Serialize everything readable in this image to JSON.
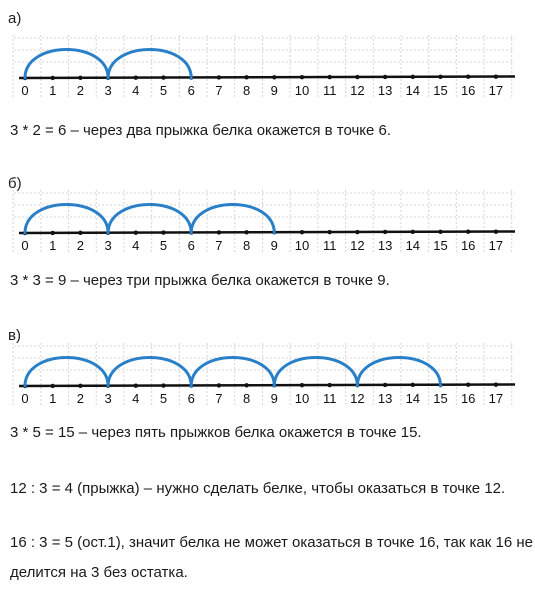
{
  "parts": [
    {
      "label": "а)",
      "jumps": [
        [
          0,
          3
        ],
        [
          3,
          6
        ]
      ],
      "ticks": [
        "0",
        "1",
        "2",
        "3",
        "4",
        "5",
        "6",
        "7",
        "8",
        "9",
        "10",
        "11",
        "12",
        "13",
        "14",
        "15",
        "16",
        "17"
      ],
      "text": "3 * 2 = 6 – через два прыжка белка окажется в точке 6."
    },
    {
      "label": "б)",
      "jumps": [
        [
          0,
          3
        ],
        [
          3,
          6
        ],
        [
          6,
          9
        ]
      ],
      "ticks": [
        "0",
        "1",
        "2",
        "3",
        "4",
        "5",
        "6",
        "7",
        "8",
        "9",
        "10",
        "11",
        "12",
        "13",
        "14",
        "15",
        "16",
        "17"
      ],
      "text": "3 * 3 = 9 – через три прыжка белка окажется в точке 9."
    },
    {
      "label": "в)",
      "jumps": [
        [
          0,
          3
        ],
        [
          3,
          6
        ],
        [
          6,
          9
        ],
        [
          9,
          12
        ],
        [
          12,
          15
        ]
      ],
      "ticks": [
        "0",
        "1",
        "2",
        "3",
        "4",
        "5",
        "6",
        "7",
        "8",
        "9",
        "10",
        "11",
        "12",
        "13",
        "14",
        "15",
        "16",
        "17"
      ],
      "text": "3 * 5 = 15 – через пять прыжков белка окажется в точке 15."
    }
  ],
  "extra": {
    "line1": "12 : 3 = 4 (прыжка) – нужно сделать белке, чтобы оказаться в точке 12.",
    "line2": "16 : 3 = 5 (ост.1), значит белка не может оказаться в точке 16, так как 16 не",
    "line3": "делится на 3 без остатка."
  },
  "colors": {
    "arc": "#2a80c8",
    "axis": "#111111",
    "grid": "#d4d4d4"
  }
}
